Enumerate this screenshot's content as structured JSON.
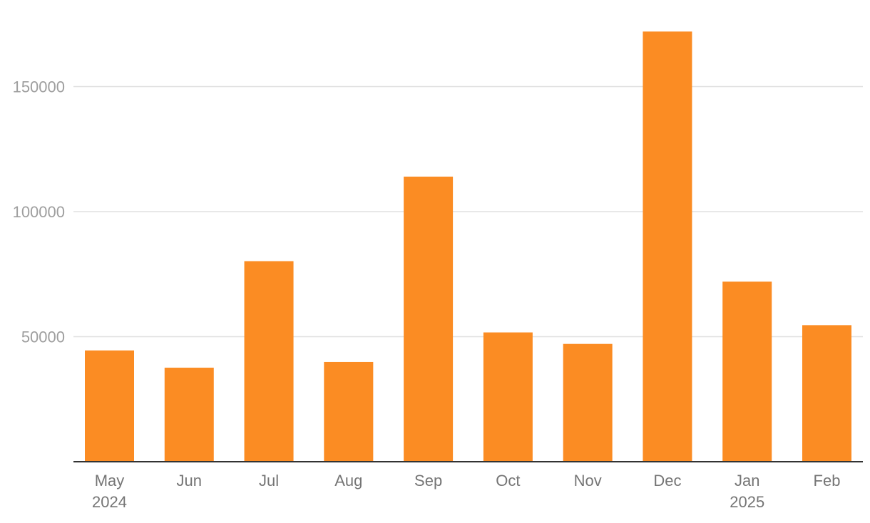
{
  "chart_data": {
    "type": "bar",
    "categories": [
      "May",
      "Jun",
      "Jul",
      "Aug",
      "Sep",
      "Oct",
      "Nov",
      "Dec",
      "Jan",
      "Feb"
    ],
    "year_labels": {
      "May": "2024",
      "Jan": "2025"
    },
    "values": [
      44500,
      37600,
      80200,
      39900,
      114000,
      51700,
      47100,
      172000,
      72000,
      54600
    ],
    "bar_color": "#fb8c23",
    "ylim": [
      0,
      172000
    ],
    "yticks": [
      50000,
      100000,
      150000
    ],
    "ytick_labels": [
      "50000",
      "100000",
      "150000"
    ],
    "grid": true,
    "title": "",
    "xlabel": "",
    "ylabel": ""
  }
}
